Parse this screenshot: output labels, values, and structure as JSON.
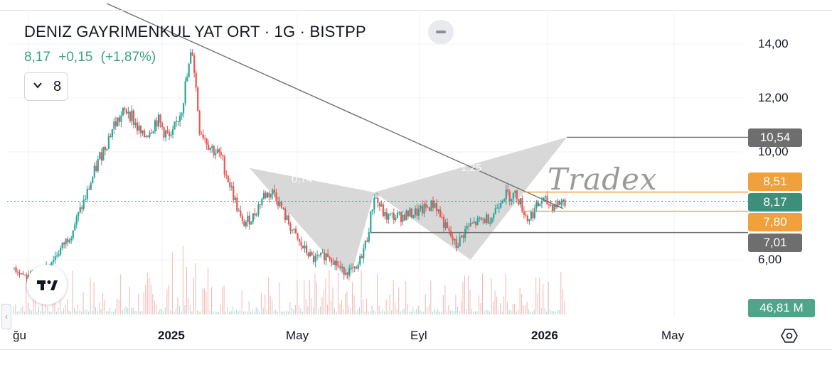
{
  "header": {
    "title": "DENIZ GAYRIMENKUL YAT ORT · 1G · BISTPP",
    "price": "8,17",
    "change": "+0,15",
    "change_pct": "(+1,87%)",
    "interval_value": "8"
  },
  "watermark": "Tradex",
  "colors": {
    "up": "#26a69a",
    "down": "#ef5350",
    "price_badge": "#3d8f7c",
    "orange_badge": "#f0a13c",
    "gray_badge": "#6e6e6e",
    "pattern_fill": "#d4d4d4",
    "volume_badge": "#4ea68a"
  },
  "chart_data": {
    "type": "candlestick",
    "title": "DENIZ GAYRIMENKUL YAT ORT · 1G · BISTPP",
    "x_ticks": [
      "ğu",
      "2025",
      "May",
      "Eyl",
      "2026",
      "May"
    ],
    "x_ticks_bold": [
      false,
      true,
      false,
      false,
      true,
      false
    ],
    "y_ticks": [
      "14,00",
      "12,00",
      "10,00",
      "6,00"
    ],
    "ylim": [
      4.8,
      15.0
    ],
    "price_scale_badges": [
      {
        "label": "10,54",
        "value": 10.54,
        "color": "gray"
      },
      {
        "label": "8,51",
        "value": 8.51,
        "color": "orange"
      },
      {
        "label": "8,17",
        "value": 8.17,
        "color": "price"
      },
      {
        "label": "7,80",
        "value": 7.8,
        "color": "orange"
      },
      {
        "label": "7,01",
        "value": 7.01,
        "color": "gray"
      }
    ],
    "volume_label": "46,81 M",
    "last_price": 8.17,
    "pattern_labels": [
      "0,74",
      "1,25"
    ],
    "close_path": [
      [
        0,
        5.7
      ],
      [
        4,
        5.3
      ],
      [
        8,
        5.6
      ],
      [
        12,
        6.2
      ],
      [
        16,
        7.0
      ],
      [
        20,
        8.3
      ],
      [
        24,
        9.8
      ],
      [
        28,
        11.0
      ],
      [
        32,
        11.6
      ],
      [
        36,
        10.5
      ],
      [
        40,
        11.2
      ],
      [
        44,
        10.4
      ],
      [
        47,
        11.7
      ],
      [
        50,
        13.8
      ],
      [
        52,
        10.9
      ],
      [
        55,
        10.2
      ],
      [
        58,
        9.8
      ],
      [
        61,
        8.6
      ],
      [
        64,
        7.3
      ],
      [
        67,
        7.6
      ],
      [
        70,
        8.4
      ],
      [
        73,
        8.5
      ],
      [
        76,
        7.6
      ],
      [
        80,
        6.6
      ],
      [
        84,
        6.0
      ],
      [
        88,
        6.2
      ],
      [
        92,
        5.6
      ],
      [
        96,
        5.6
      ],
      [
        99,
        6.8
      ],
      [
        101,
        8.4
      ],
      [
        104,
        7.6
      ],
      [
        108,
        7.6
      ],
      [
        111,
        7.7
      ],
      [
        114,
        7.8
      ],
      [
        118,
        8.1
      ],
      [
        121,
        7.2
      ],
      [
        124,
        6.5
      ],
      [
        127,
        7.2
      ],
      [
        130,
        7.4
      ],
      [
        134,
        7.6
      ],
      [
        137,
        8.4
      ],
      [
        141,
        8.4
      ],
      [
        144,
        7.5
      ],
      [
        148,
        8.2
      ],
      [
        151,
        8.0
      ],
      [
        154,
        8.17
      ]
    ],
    "candle_count": 155,
    "x_range": [
      0,
      154
    ],
    "trend_line": [
      [
        26,
        15.5
      ],
      [
        154,
        7.9
      ]
    ],
    "horizontal_levels": [
      10.54,
      8.51,
      7.8,
      7.01
    ],
    "pattern_triangles": [
      [
        [
          66,
          9.4
        ],
        [
          101,
          8.5
        ],
        [
          94,
          5.2
        ]
      ],
      [
        [
          101,
          8.5
        ],
        [
          155,
          10.54
        ],
        [
          128,
          6.0
        ]
      ]
    ],
    "volume_scale_max": 1.0,
    "volume_note": "relative"
  }
}
